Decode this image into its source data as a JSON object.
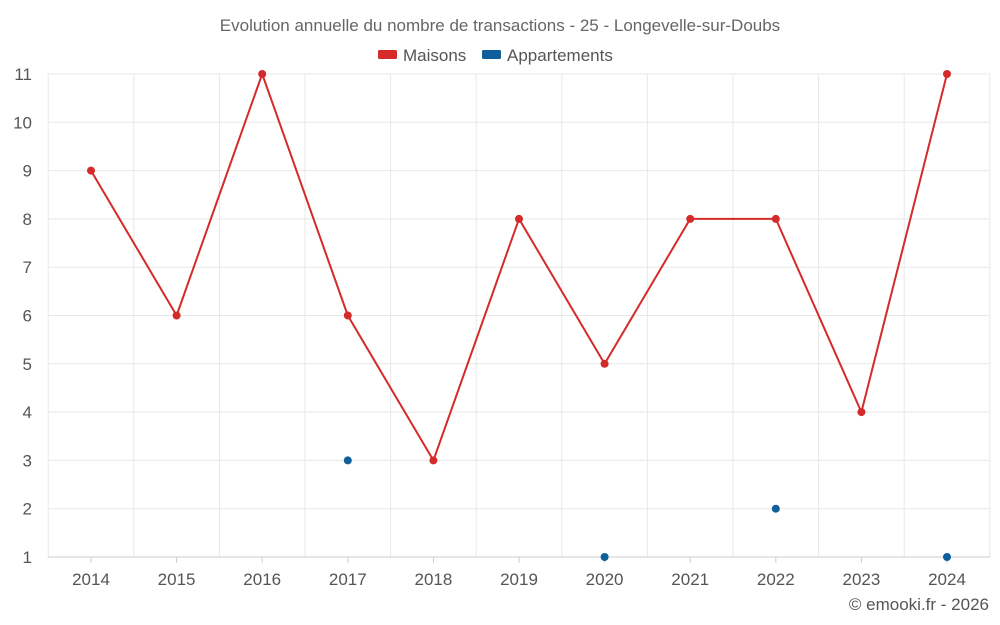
{
  "colors": {
    "maisons": "#d42a2a",
    "appartements": "#0e5f9b",
    "grid": "#e8e8e8",
    "text": "#555555"
  },
  "credit": "© emooki.fr - 2026",
  "chart_data": {
    "type": "line",
    "title": "Evolution annuelle du nombre de transactions - 25 - Longevelle-sur-Doubs",
    "xlabel": "",
    "ylabel": "",
    "ylim": [
      1,
      11
    ],
    "yticks": [
      "1",
      "2",
      "3",
      "4",
      "5",
      "6",
      "7",
      "8",
      "9",
      "10",
      "11"
    ],
    "grid": true,
    "legend_position": "top-center",
    "categories": [
      "2014",
      "2015",
      "2016",
      "2017",
      "2018",
      "2019",
      "2020",
      "2021",
      "2022",
      "2023",
      "2024"
    ],
    "series": [
      {
        "name": "Maisons",
        "color": "#d42a2a",
        "line": true,
        "values": [
          9,
          6,
          11,
          6,
          3,
          8,
          5,
          8,
          8,
          4,
          11
        ]
      },
      {
        "name": "Appartements",
        "color": "#0e5f9b",
        "line": false,
        "values": [
          null,
          null,
          null,
          3,
          null,
          null,
          1,
          null,
          2,
          null,
          1
        ]
      }
    ]
  }
}
